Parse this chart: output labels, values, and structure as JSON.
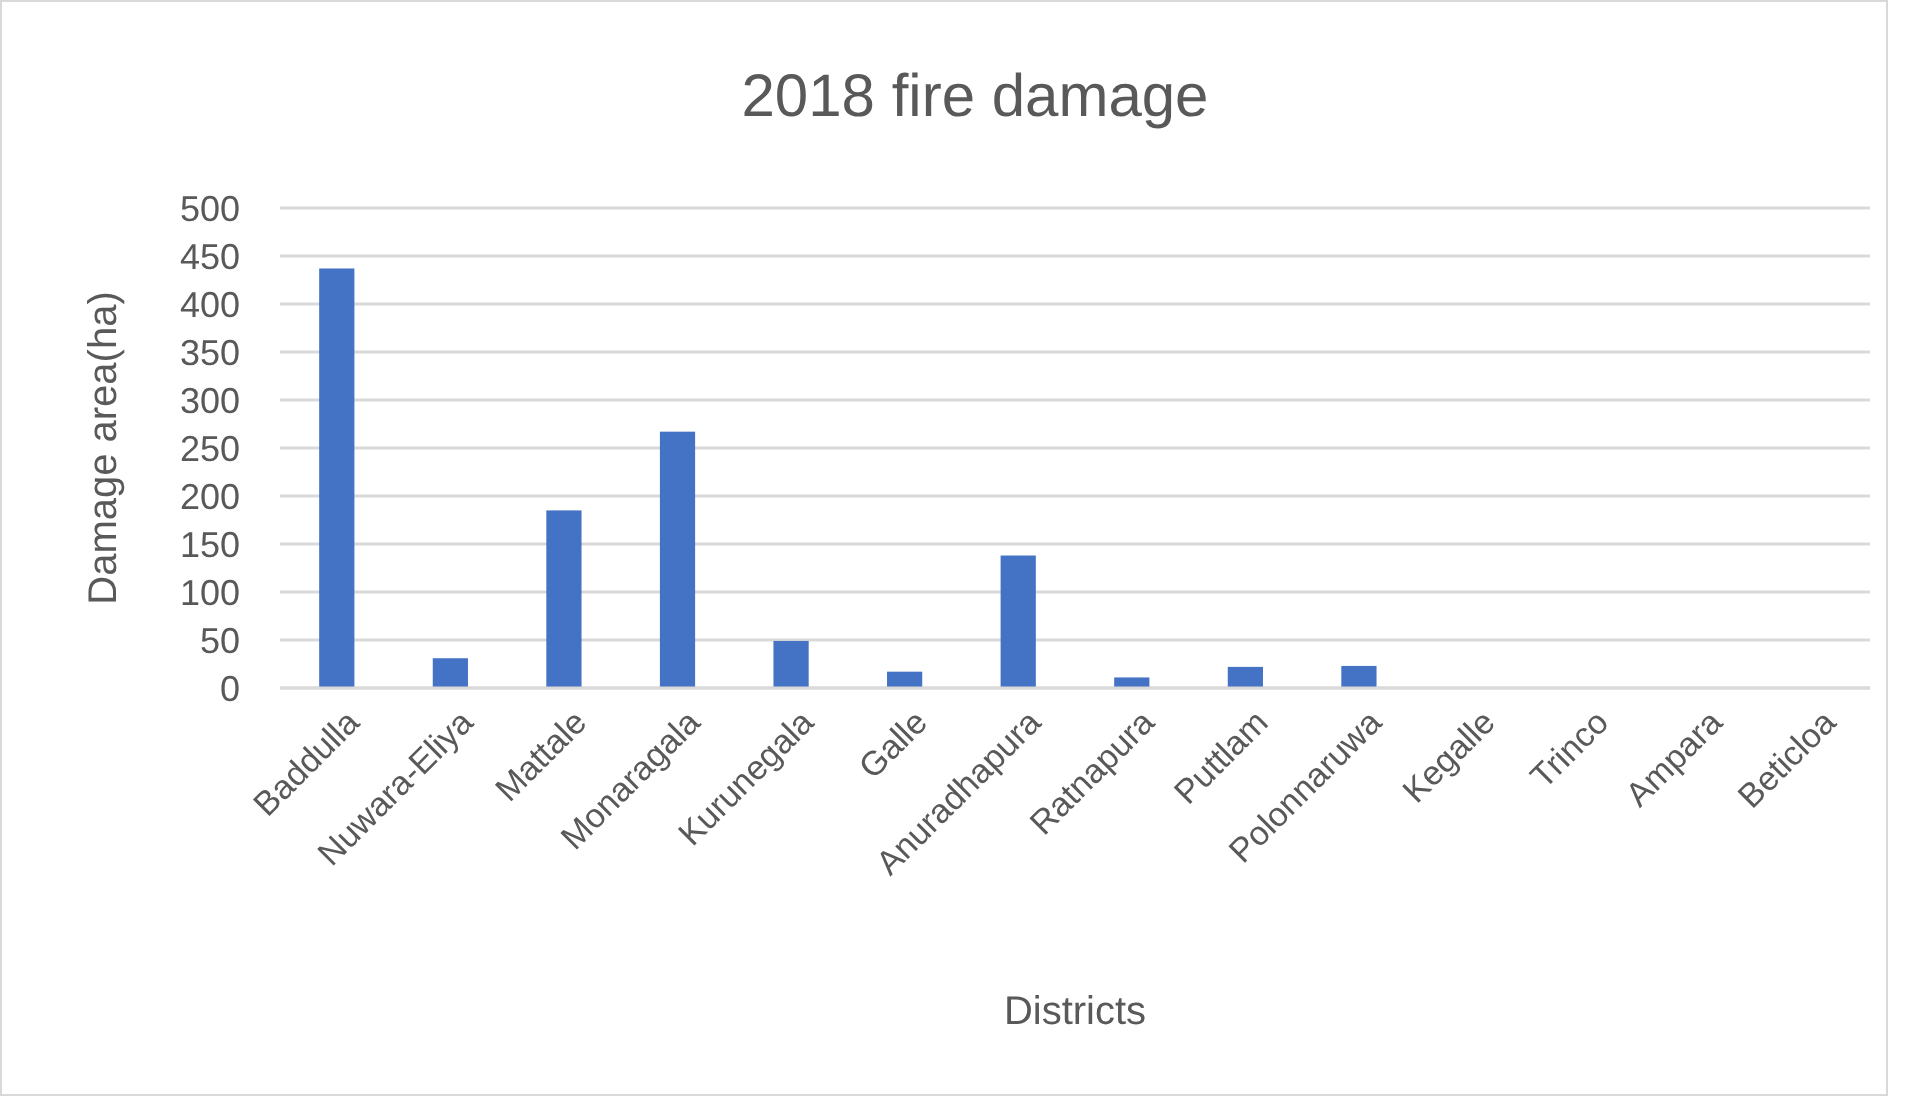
{
  "chart_data": {
    "type": "bar",
    "title": "2018 fire  damage",
    "xlabel": "Districts",
    "ylabel": "Damage area(ha)",
    "categories": [
      "Baddulla",
      "Nuwara-Eliya",
      "Mattale",
      "Monaragala",
      "Kurunegala",
      "Galle",
      "Anuradhapura",
      "Ratnapura",
      "Puttlam",
      "Polonnaruwa",
      "Kegalle",
      "Trinco",
      "Ampara",
      "Beticloa"
    ],
    "values": [
      437,
      31,
      185,
      267,
      49,
      17,
      138,
      11,
      22,
      23,
      0,
      0,
      0,
      0
    ],
    "color": "#4472c4",
    "ylim": [
      0,
      500
    ],
    "yticks": [
      0,
      50,
      100,
      150,
      200,
      250,
      300,
      350,
      400,
      450,
      500
    ],
    "grid": "y"
  }
}
